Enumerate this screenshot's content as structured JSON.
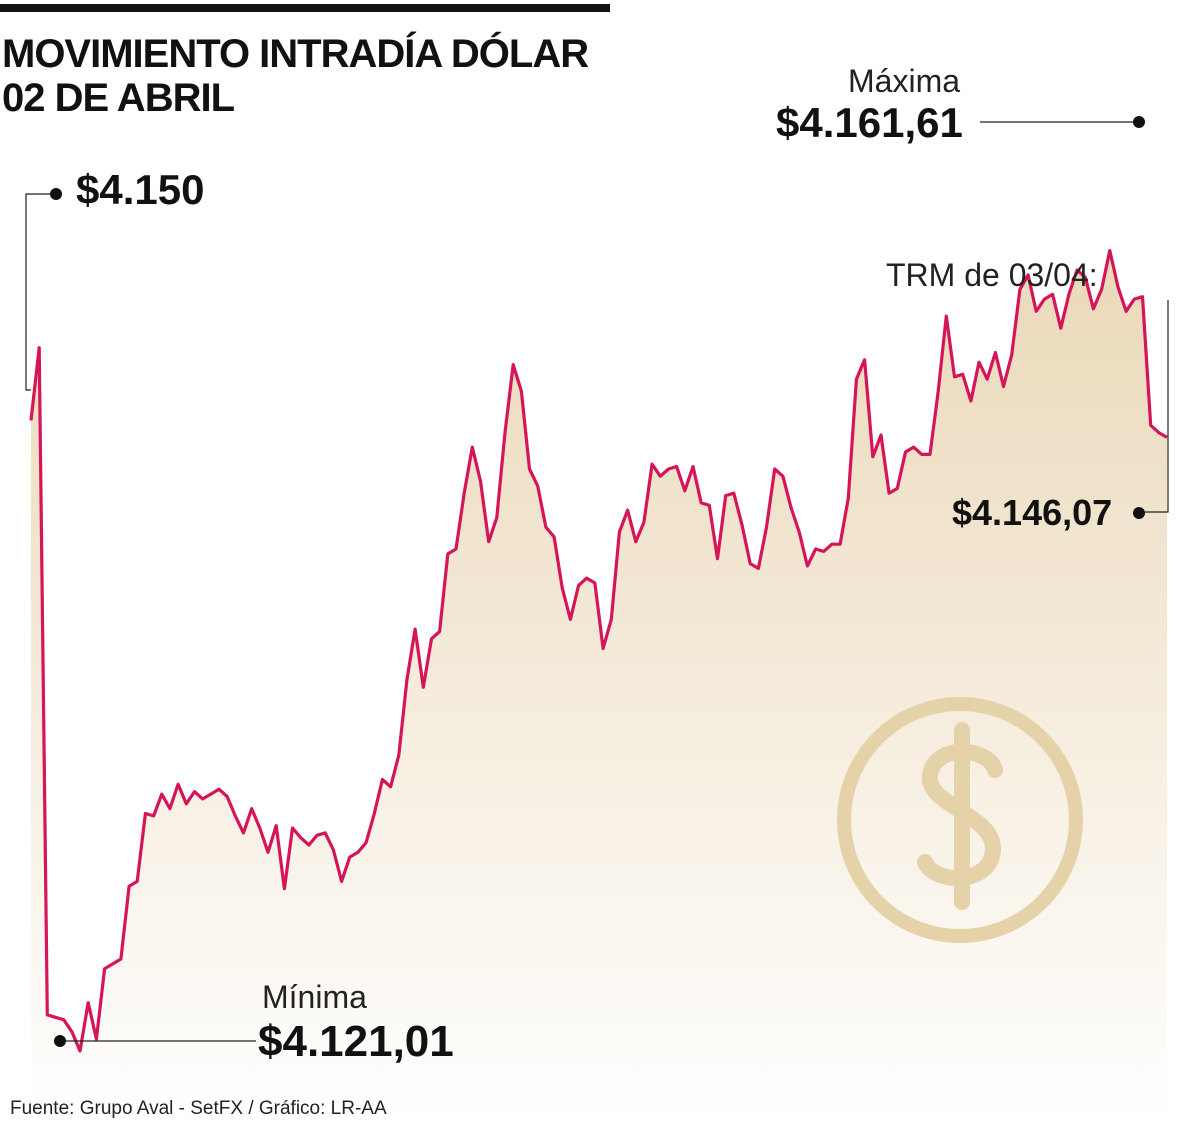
{
  "header": {
    "title_line1": "MOVIMIENTO INTRADÍA DÓLAR",
    "title_line2": "02 DE ABRIL"
  },
  "annotations": {
    "open_value": "$4.150",
    "max_label": "Máxima",
    "max_value": "$4.161,61",
    "min_label": "Mínima",
    "min_value": "$4.121,01",
    "trm_label": "TRM de 03/04:",
    "trm_value": "$4.146,07"
  },
  "footer": {
    "source": "Fuente: Grupo Aval - SetFX / Gráfico: LR-AA"
  },
  "colors": {
    "line": "#d6145a",
    "fill_top": "#ead8b8",
    "fill_bottom": "#ffffff",
    "icon": "#e6d2a8"
  },
  "icons": [
    "dollar-coin-icon"
  ],
  "chart_data": {
    "type": "line",
    "title": "MOVIMIENTO INTRADÍA DÓLAR 02 DE ABRIL",
    "xlabel": "",
    "ylabel": "",
    "ylim": [
      4118,
      4164
    ],
    "grid": false,
    "series": [
      {
        "values": [
          4147.0,
          4150.0,
          4122.5,
          4122.4,
          4122.3,
          4121.8,
          4121.01,
          4123.0,
          4121.5,
          4124.4,
          4124.6,
          4124.8,
          4127.8,
          4128.0,
          4130.8,
          4130.7,
          4131.6,
          4131.0,
          4132.0,
          4131.2,
          4131.7,
          4131.4,
          4131.6,
          4131.8,
          4131.5,
          4130.7,
          4130.0,
          4131.0,
          4130.2,
          4129.2,
          4130.3,
          4127.7,
          4130.2,
          4129.8,
          4129.5,
          4129.9,
          4130.0,
          4129.3,
          4128.0,
          4129.0,
          4129.2,
          4129.6,
          4130.8,
          4132.2,
          4131.9,
          4133.2,
          4136.3,
          4138.4,
          4136.0,
          4138.0,
          4138.3,
          4141.5,
          4141.7,
          4144.0,
          4145.9,
          4144.5,
          4142.0,
          4143.0,
          4146.5,
          4149.3,
          4148.2,
          4145.0,
          4144.3,
          4142.6,
          4142.2,
          4140.1,
          4138.8,
          4140.2,
          4140.5,
          4140.3,
          4137.6,
          4138.8,
          4142.4,
          4143.3,
          4142.0,
          4142.8,
          4145.2,
          4144.7,
          4145.0,
          4145.1,
          4144.1,
          4145.1,
          4143.6,
          4143.5,
          4141.3,
          4143.9,
          4144.0,
          4142.7,
          4141.1,
          4140.9,
          4142.6,
          4145.0,
          4144.7,
          4143.4,
          4142.4,
          4141.0,
          4141.7,
          4141.6,
          4141.9,
          4141.9,
          4143.8,
          4148.7,
          4149.5,
          4145.5,
          4146.4,
          4144.0,
          4144.2,
          4145.7,
          4145.9,
          4145.6,
          4145.6,
          4148.2,
          4151.3,
          4148.8,
          4148.9,
          4147.8,
          4149.4,
          4148.7,
          4149.8,
          4148.4,
          4149.7,
          4152.4,
          4153.0,
          4151.5,
          4152.0,
          4152.2,
          4150.8,
          4152.2,
          4153.2,
          4152.9,
          4151.6,
          4152.4,
          4154.0,
          4152.5,
          4151.5,
          4152.0,
          4152.1,
          4146.8,
          4146.5,
          4146.3
        ]
      }
    ],
    "labeled_points": {
      "open": 4150,
      "high": 4161.61,
      "low": 4121.01,
      "trm_03_04": 4146.07
    }
  }
}
